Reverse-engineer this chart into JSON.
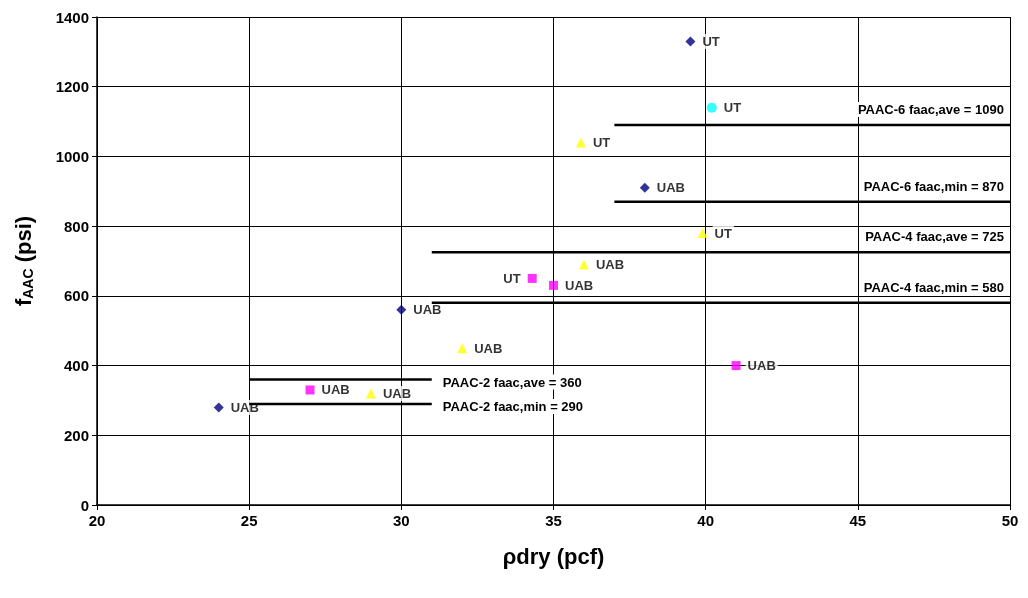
{
  "chart_data": {
    "type": "scatter",
    "xlabel": "ρdry (pcf)",
    "ylabel": "f$_{AAC}$ (psi)",
    "xlim": [
      20,
      50
    ],
    "xticks": [
      20,
      25,
      30,
      35,
      40,
      45,
      50
    ],
    "ylim": [
      0,
      1400
    ],
    "yticks": [
      0,
      200,
      400,
      600,
      800,
      1000,
      1200,
      1400
    ],
    "grid": true,
    "series": [
      {
        "color": "#000080",
        "marker": "diamond",
        "x": [
          24,
          30,
          38,
          39.5
        ],
        "values": [
          280,
          560,
          910,
          1330
        ],
        "value_labels": [
          "UAB",
          "UAB",
          "UAB",
          "UT"
        ]
      },
      {
        "color": "#ff00ff",
        "marker": "square",
        "x": [
          27,
          34.3,
          35,
          41
        ],
        "values": [
          330,
          650,
          630,
          400
        ],
        "value_labels": [
          "UAB",
          "UT",
          "UAB",
          "UAB"
        ]
      },
      {
        "color": "#ffff00",
        "marker": "triangle",
        "x": [
          29,
          32,
          35.9,
          36,
          39.9
        ],
        "values": [
          320,
          450,
          1040,
          690,
          780
        ],
        "value_labels": [
          "UAB",
          "UAB",
          "UT",
          "UAB",
          "UT"
        ]
      },
      {
        "color": "#00ffff",
        "marker": "circle",
        "x": [
          40.2
        ],
        "values": [
          1140
        ],
        "value_labels": [
          "UT"
        ]
      },
      {
        "type": "line",
        "name": "PAAC-6 faac,ave = 1090",
        "color": "#000000",
        "marker": "none",
        "x": [
          37,
          50
        ],
        "values": [
          1090,
          1090
        ]
      },
      {
        "type": "line",
        "name": "PAAC-6 faac,min = 870",
        "color": "#000000",
        "marker": "none",
        "x": [
          37,
          50
        ],
        "values": [
          870,
          870
        ]
      },
      {
        "type": "line",
        "name": "PAAC-4 faac,ave = 725",
        "color": "#000000",
        "marker": "none",
        "x": [
          31,
          50
        ],
        "values": [
          725,
          725
        ]
      },
      {
        "type": "line",
        "name": "PAAC-4 faac,min = 580",
        "color": "#000000",
        "marker": "none",
        "x": [
          31,
          50
        ],
        "values": [
          580,
          580
        ]
      },
      {
        "type": "line",
        "name": "PAAC-2 faac,ave = 360",
        "color": "#000000",
        "marker": "none",
        "x": [
          25,
          31
        ],
        "values": [
          360,
          360
        ]
      },
      {
        "type": "line",
        "name": "PAAC-2 faac,min = 290",
        "color": "#000000",
        "marker": "none",
        "x": [
          25,
          31
        ],
        "values": [
          290,
          290
        ]
      }
    ]
  }
}
